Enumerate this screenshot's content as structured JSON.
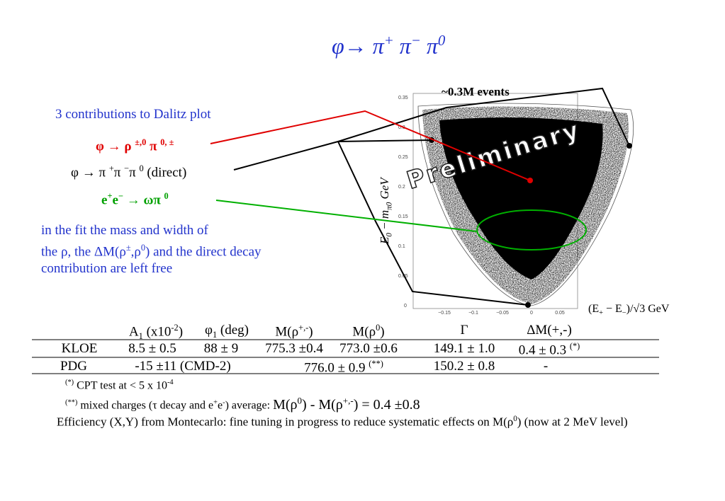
{
  "title": [
    "φ→ ",
    "π",
    "+",
    " π",
    "−",
    " π",
    "0"
  ],
  "left": {
    "heading": "3 contributions to Dalitz plot",
    "c1": [
      "φ → ρ ",
      "±,0",
      " π ",
      "0, ±"
    ],
    "c2": [
      "φ → π ",
      "+",
      "π ",
      "−",
      "π ",
      "0",
      " (direct)"
    ],
    "c3": [
      "e",
      "+",
      "e",
      "−",
      " → ωπ ",
      "0"
    ],
    "para": {
      "l1": "in the fit the mass and width of",
      "l2": [
        "the ρ, the ΔM(ρ",
        "±",
        ",ρ",
        "0",
        ") and the direct decay"
      ],
      "l3": "contribution are left free"
    }
  },
  "plot": {
    "events": "~0.3M events",
    "watermark": "Preliminary",
    "yticks": [
      "0.35",
      "0.3",
      "0.25",
      "0.2",
      "0.15",
      "0.1",
      "0.05",
      "0"
    ],
    "xticks": [
      "−0.15",
      "−0.1",
      "−0.05",
      "0",
      "0.05"
    ],
    "ylabel": [
      "E",
      "0",
      " − m",
      "π0",
      " GeV"
    ],
    "xlabel": [
      "(E",
      "+",
      " − E",
      "−",
      ")/√3 GeV"
    ]
  },
  "table": {
    "header": [
      [
        "A",
        "1",
        " (x10",
        "-2",
        ")"
      ],
      [
        "φ",
        "1",
        " (deg)"
      ],
      [
        "M(ρ",
        "+,-",
        ")"
      ],
      [
        "M(ρ",
        "0",
        ")"
      ],
      "Γ",
      "ΔM(+,-)"
    ],
    "rows": [
      [
        "KLOE",
        "8.5 ± 0.5",
        "88 ± 9",
        "775.3 ±0.4",
        "773.0 ±0.6",
        "149.1 ± 1.0",
        [
          "0.4 ± 0.3 ",
          "(*)"
        ]
      ],
      [
        "PDG",
        "-15 ±11 (CMD-2)",
        [
          "776.0 ± 0.9 ",
          "(**)"
        ],
        "150.2 ± 0.8",
        "-"
      ]
    ]
  },
  "notes": [
    [
      "(*)",
      " CPT test at < 5 x 10",
      "-4"
    ],
    [
      "(**)",
      " mixed charges (τ decay and e",
      "+",
      "e",
      "-",
      ") average: ",
      "M(ρ",
      "0",
      ") - M(ρ",
      "+,-",
      ") = 0.4 ±0.8"
    ],
    [
      "Efficiency (X,Y) from  Montecarlo: fine tuning in progress to reduce systematic effects on  M(ρ",
      "0",
      ") (now at 2 MeV level)"
    ]
  ]
}
